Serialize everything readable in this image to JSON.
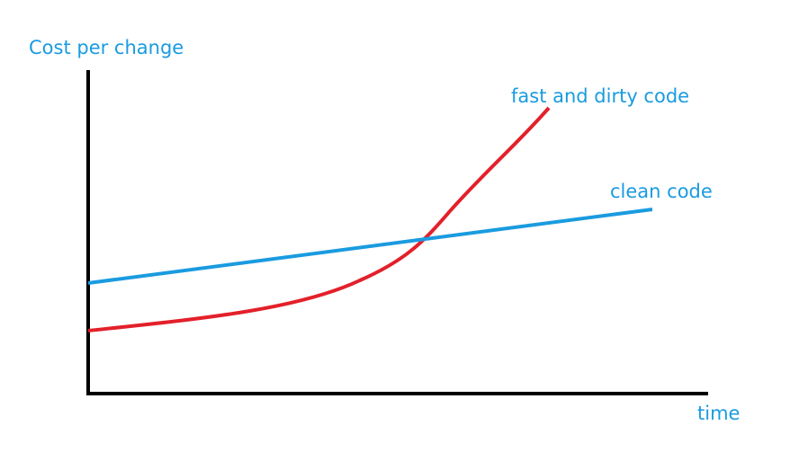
{
  "y_axis_label": "Cost per change",
  "x_axis_label": "time",
  "curves": [
    {
      "label": "fast and dirty code"
    },
    {
      "label": "clean code"
    }
  ]
}
